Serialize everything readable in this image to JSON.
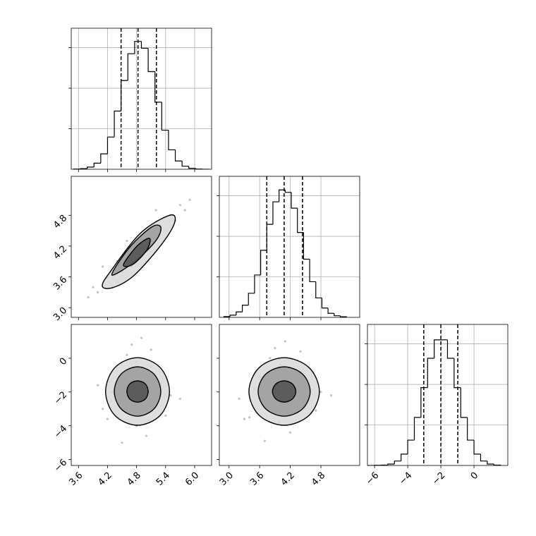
{
  "chart_data": [
    {
      "type": "histogram",
      "color": "#000000",
      "grid": true,
      "xlim": [
        3.45,
        6.35
      ],
      "xticks": [
        3.6,
        4.2,
        4.8,
        5.4,
        {
          "value": 6,
          "label": "6.0"
        }
      ],
      "xtick_labels": false,
      "ylim": [
        0,
        696
      ],
      "yticks": [
        200,
        400,
        600
      ],
      "ytick_labels": false,
      "bins": [
        3.5,
        3.64,
        3.78,
        3.92,
        4.06,
        4.2,
        4.34,
        4.48,
        4.62,
        4.76,
        4.9,
        5.04,
        5.18,
        5.32,
        5.46,
        5.6,
        5.74,
        5.88,
        6.02,
        6.16,
        6.3
      ],
      "values": [
        1,
        3,
        11,
        30,
        76,
        159,
        287,
        438,
        570,
        631,
        597,
        482,
        331,
        193,
        96,
        41,
        15,
        5,
        1,
        0
      ],
      "quantiles": [
        4.48,
        4.83,
        5.21
      ]
    },
    {
      "type": "scatter",
      "color": "#000000",
      "grid": false,
      "xlim": [
        3.45,
        6.35
      ],
      "xticks": [
        3.6,
        4.2,
        4.8,
        5.4,
        {
          "value": 6,
          "label": "6.0"
        }
      ],
      "xtick_labels": false,
      "ylim": [
        2.81,
        5.56
      ],
      "yticks": [
        {
          "value": 3,
          "label": "3.0"
        },
        3.6,
        4.2,
        4.8
      ],
      "ytick_labels": true,
      "x": [
        4.0,
        4.2,
        4.3,
        4.4,
        4.5,
        4.6,
        4.7,
        4.8,
        4.9,
        5.0,
        5.1,
        5.2,
        5.3,
        5.4,
        5.5,
        5.6,
        5.7,
        3.9,
        4.6,
        5.0,
        4.4,
        5.8,
        5.2,
        4.1,
        5.9,
        3.8
      ],
      "y": [
        3.3,
        3.6,
        3.4,
        3.9,
        3.7,
        4.0,
        3.8,
        4.1,
        4.0,
        4.3,
        4.1,
        4.4,
        4.6,
        4.5,
        4.8,
        4.7,
        5.0,
        3.4,
        4.3,
        3.9,
        3.5,
        4.9,
        4.9,
        3.8,
        5.1,
        3.2
      ],
      "contours": [
        {
          "x": [
            4.09,
            4.31,
            4.89,
            5.48,
            5.59,
            5.33,
            4.75,
            4.31
          ],
          "y": [
            3.43,
            3.77,
            4.46,
            4.8,
            4.67,
            4.25,
            3.63,
            3.39
          ]
        },
        {
          "x": [
            4.31,
            4.67,
            5.11,
            5.3,
            5.21,
            4.82,
            4.38
          ],
          "y": [
            3.7,
            4.19,
            4.57,
            4.57,
            4.32,
            3.94,
            3.66
          ]
        },
        {
          "x": [
            4.53,
            4.82,
            5.07,
            5.01,
            4.72
          ],
          "y": [
            3.84,
            4.21,
            4.35,
            4.12,
            3.84
          ]
        }
      ]
    },
    {
      "type": "histogram",
      "color": "#000000",
      "grid": true,
      "xlim": [
        2.81,
        5.56
      ],
      "xticks": [
        {
          "value": 3,
          "label": "3.0"
        },
        3.6,
        4.2,
        4.8
      ],
      "xtick_labels": false,
      "ylim": [
        0,
        696
      ],
      "yticks": [
        200,
        400,
        600
      ],
      "ytick_labels": false,
      "bins": [
        2.9,
        3.02,
        3.14,
        3.26,
        3.38,
        3.5,
        3.62,
        3.74,
        3.86,
        3.98,
        4.1,
        4.22,
        4.34,
        4.46,
        4.58,
        4.7,
        4.82,
        4.94,
        5.06,
        5.18,
        5.3
      ],
      "values": [
        4,
        11,
        27,
        60,
        119,
        209,
        331,
        459,
        570,
        629,
        617,
        539,
        419,
        287,
        176,
        96,
        46,
        20,
        8,
        3
      ],
      "quantiles": [
        3.74,
        4.08,
        4.44
      ]
    },
    {
      "type": "scatter",
      "color": "#000000",
      "grid": false,
      "xlim": [
        3.45,
        6.35
      ],
      "xticks": [
        3.6,
        4.2,
        4.8,
        5.4,
        {
          "value": 6,
          "label": "6.0"
        }
      ],
      "xtick_labels": true,
      "ylim": [
        -6.35,
        2.0
      ],
      "yticks": [
        {
          "value": -6,
          "label": "−6"
        },
        {
          "value": -4,
          "label": "−4"
        },
        {
          "value": -2,
          "label": "−2"
        },
        0
      ],
      "ytick_labels": true,
      "x": [
        4.5,
        4.9,
        5.1,
        4.7,
        4.3,
        5.3,
        4.8,
        4.6,
        5.0,
        4.4,
        5.2,
        4.9,
        4.2,
        5.5,
        4.7,
        4.0,
        5.0,
        4.8,
        4.6,
        5.4,
        4.5,
        5.1,
        4.9,
        4.3,
        5.7,
        4.1
      ],
      "y": [
        -1.0,
        -2.5,
        -0.5,
        -3.2,
        -2.0,
        -1.5,
        -4.0,
        0.2,
        -3.0,
        -1.2,
        -2.8,
        -1.8,
        -3.6,
        -2.2,
        0.8,
        -1.6,
        -4.6,
        -0.2,
        -2.6,
        -3.4,
        -5.0,
        0.5,
        1.2,
        -0.8,
        -2.4,
        -3.0
      ],
      "contours": [
        {
          "x": [
            5.48,
            5.29,
            4.82,
            4.35,
            4.16,
            4.35,
            4.82,
            5.29
          ],
          "y": [
            -1.97,
            -0.56,
            0.03,
            -0.56,
            -1.97,
            -3.38,
            -3.97,
            -3.38
          ]
        },
        {
          "x": [
            5.3,
            5.16,
            4.82,
            4.48,
            4.34,
            4.48,
            4.82,
            5.16
          ],
          "y": [
            -1.97,
            -0.94,
            -0.51,
            -0.94,
            -1.97,
            -3.0,
            -3.43,
            -3.0
          ]
        },
        {
          "x": [
            5.04,
            4.98,
            4.82,
            4.66,
            4.6,
            4.66,
            4.82,
            4.98
          ],
          "y": [
            -1.97,
            -1.52,
            -1.34,
            -1.52,
            -1.97,
            -2.42,
            -2.6,
            -2.42
          ]
        }
      ]
    },
    {
      "type": "scatter",
      "color": "#000000",
      "grid": false,
      "xlim": [
        2.81,
        5.56
      ],
      "xticks": [
        {
          "value": 3,
          "label": "3.0"
        },
        3.6,
        4.2,
        4.8
      ],
      "xtick_labels": true,
      "ylim": [
        -6.35,
        2.0
      ],
      "yticks": [
        -6,
        -4,
        -2,
        0
      ],
      "ytick_labels": false,
      "x": [
        3.7,
        4.1,
        4.4,
        3.9,
        3.5,
        4.6,
        4.0,
        3.8,
        4.3,
        3.6,
        4.5,
        4.1,
        3.4,
        4.8,
        3.9,
        3.2,
        4.2,
        4.0,
        3.8,
        4.7,
        3.7,
        4.4,
        4.1,
        3.5,
        5.0,
        3.3
      ],
      "y": [
        -1.4,
        -2.2,
        -0.8,
        -3.0,
        -1.8,
        -2.5,
        -3.8,
        0.0,
        -3.3,
        -1.1,
        -1.6,
        -2.9,
        -3.5,
        -2.0,
        0.6,
        -2.4,
        -4.4,
        -0.4,
        -2.7,
        -3.1,
        -4.9,
        0.4,
        1.0,
        -1.0,
        -2.2,
        -3.6
      ],
      "contours": [
        {
          "x": [
            4.77,
            4.57,
            4.08,
            3.59,
            3.39,
            3.59,
            4.08,
            4.57
          ],
          "y": [
            -1.97,
            -0.56,
            0.03,
            -0.56,
            -1.97,
            -3.38,
            -3.97,
            -3.38
          ]
        },
        {
          "x": [
            4.59,
            4.44,
            4.08,
            3.72,
            3.57,
            3.72,
            4.08,
            4.44
          ],
          "y": [
            -1.97,
            -0.94,
            -0.51,
            -0.94,
            -1.97,
            -3.0,
            -3.43,
            -3.0
          ]
        },
        {
          "x": [
            4.31,
            4.24,
            4.08,
            3.92,
            3.85,
            3.92,
            4.08,
            4.24
          ],
          "y": [
            -1.97,
            -1.52,
            -1.34,
            -1.52,
            -1.97,
            -2.42,
            -2.6,
            -2.42
          ]
        }
      ]
    },
    {
      "type": "histogram",
      "color": "#000000",
      "grid": true,
      "xlim": [
        -6.43,
        2.04
      ],
      "xticks": [
        {
          "value": -6,
          "label": "−6"
        },
        {
          "value": -4,
          "label": "−4"
        },
        {
          "value": -2,
          "label": "−2"
        },
        0
      ],
      "xtick_labels": true,
      "ylim": [
        0,
        696
      ],
      "yticks": [
        200,
        400,
        600
      ],
      "ytick_labels": false,
      "bins": [
        -6.4,
        -6,
        -5.6,
        -5.2,
        -4.8,
        -4.4,
        -4,
        -3.6,
        -3.2,
        -2.8,
        -2.4,
        -2,
        -1.6,
        -1.2,
        -0.8,
        -0.4,
        0,
        0.4,
        0.8,
        1.2,
        1.6
      ],
      "values": [
        0,
        1,
        2,
        7,
        22,
        56,
        125,
        237,
        384,
        529,
        620,
        620,
        529,
        384,
        237,
        125,
        56,
        22,
        7,
        2
      ],
      "quantiles": [
        -3.03,
        -2,
        -0.98
      ]
    }
  ]
}
